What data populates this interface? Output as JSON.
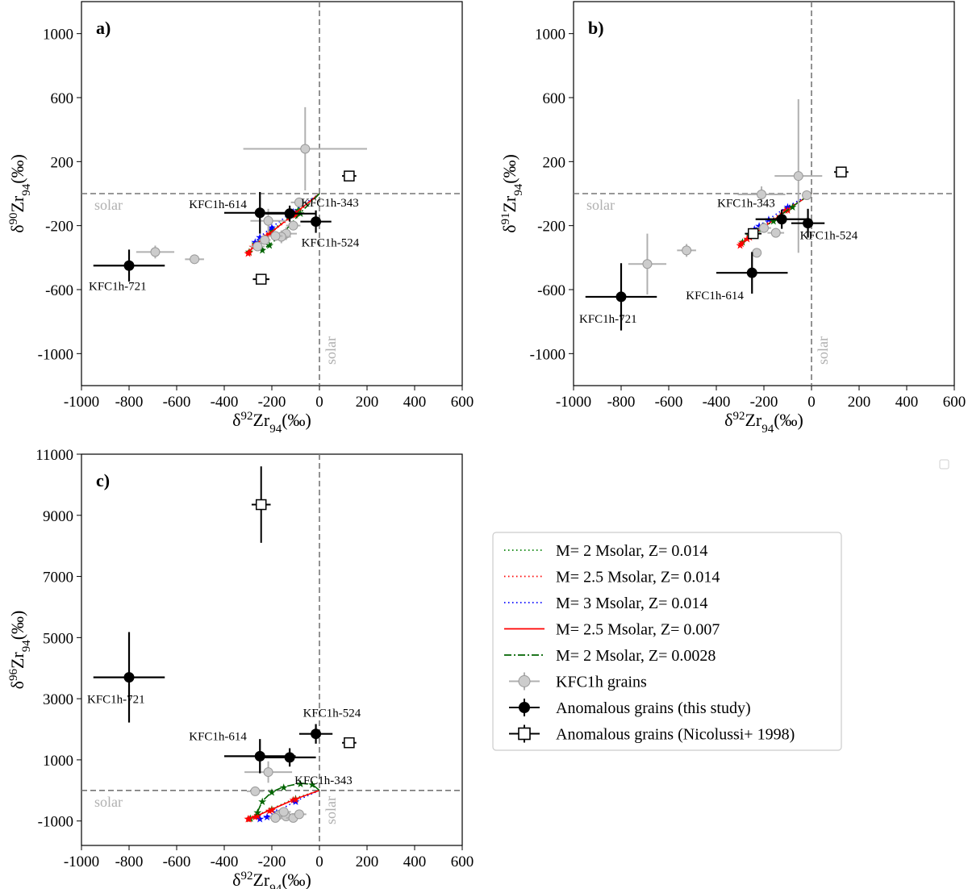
{
  "chart_data": [
    {
      "panel": "a)",
      "type": "scatter",
      "xlabel": {
        "base": "δ",
        "sup": "92",
        "main": "Zr",
        "sub": "94",
        "unit": "(‰)"
      },
      "ylabel": {
        "base": "δ",
        "sup": "90",
        "main": "Zr",
        "sub": "94",
        "unit": "(‰)"
      },
      "xlim": [
        -1000,
        600
      ],
      "ylim": [
        -1200,
        1200
      ],
      "xticks": [
        -1000,
        -800,
        -600,
        -400,
        -200,
        0,
        200,
        400,
        600
      ],
      "yticks": [
        -1000,
        -600,
        -200,
        200,
        600,
        1000
      ],
      "solar_labels": [
        "solar",
        "solar"
      ],
      "kfc1h_grains": [
        {
          "x": -60,
          "y": 280,
          "ex": 260,
          "ey": 260
        },
        {
          "x": -690,
          "y": -365,
          "ex": 80,
          "ey": 40
        },
        {
          "x": -525,
          "y": -410,
          "ex": 40,
          "ey": 25
        },
        {
          "x": -85,
          "y": -55,
          "ex": 35,
          "ey": 30
        },
        {
          "x": -215,
          "y": -170,
          "ex": 75,
          "ey": 75
        },
        {
          "x": -110,
          "y": -200,
          "ex": 30,
          "ey": 30
        },
        {
          "x": -140,
          "y": -250,
          "ex": 45,
          "ey": 40
        },
        {
          "x": -160,
          "y": -270,
          "ex": 40,
          "ey": 40
        },
        {
          "x": -185,
          "y": -265,
          "ex": 30,
          "ey": 30
        },
        {
          "x": -260,
          "y": -330,
          "ex": 30,
          "ey": 25
        },
        {
          "x": -230,
          "y": -290,
          "ex": 25,
          "ey": 25
        }
      ],
      "anomalous_this_study": [
        {
          "label": "KFC1h-721",
          "x": -800,
          "y": -450,
          "ex": 150,
          "ey": 100
        },
        {
          "label": "KFC1h-614",
          "x": -250,
          "y": -120,
          "ex": 150,
          "ey": 130
        },
        {
          "label": "KFC1h-343",
          "x": -125,
          "y": -125,
          "ex": 110,
          "ey": 50
        },
        {
          "label": "KFC1h-524",
          "x": -15,
          "y": -175,
          "ex": 65,
          "ey": 70
        }
      ],
      "anomalous_nicolussi": [
        {
          "x": 125,
          "y": 110,
          "ex": 30,
          "ey": 20
        },
        {
          "x": -245,
          "y": -535,
          "ex": 35,
          "ey": 20
        }
      ],
      "models": [
        {
          "x": [
            0,
            -90,
            -200,
            -270,
            -295
          ],
          "y": [
            0,
            -100,
            -230,
            -310,
            -360
          ]
        },
        {
          "x": [
            0,
            -100,
            -220,
            -280,
            -300
          ],
          "y": [
            0,
            -130,
            -260,
            -330,
            -370
          ]
        },
        {
          "x": [
            0,
            -110,
            -200,
            -250,
            -270
          ],
          "y": [
            0,
            -110,
            -210,
            -270,
            -300
          ]
        },
        {
          "x": [
            0,
            -100,
            -210,
            -270,
            -295
          ],
          "y": [
            0,
            -120,
            -250,
            -320,
            -365
          ]
        },
        {
          "x": [
            0,
            -80,
            -160,
            -210,
            -240
          ],
          "y": [
            0,
            -120,
            -260,
            -320,
            -350
          ]
        }
      ]
    },
    {
      "panel": "b)",
      "type": "scatter",
      "xlabel": {
        "base": "δ",
        "sup": "92",
        "main": "Zr",
        "sub": "94",
        "unit": "(‰)"
      },
      "ylabel": {
        "base": "δ",
        "sup": "91",
        "main": "Zr",
        "sub": "94",
        "unit": "(‰)"
      },
      "xlim": [
        -1000,
        600
      ],
      "ylim": [
        -1200,
        1200
      ],
      "xticks": [
        -1000,
        -800,
        -600,
        -400,
        -200,
        0,
        200,
        400,
        600
      ],
      "yticks": [
        -1000,
        -600,
        -200,
        200,
        600,
        1000
      ],
      "solar_labels": [
        "solar",
        "solar"
      ],
      "kfc1h_grains": [
        {
          "x": -55,
          "y": 110,
          "ex": 100,
          "ey": 480
        },
        {
          "x": -210,
          "y": -5,
          "ex": 100,
          "ey": 50
        },
        {
          "x": -690,
          "y": -440,
          "ex": 80,
          "ey": 190
        },
        {
          "x": -525,
          "y": -355,
          "ex": 40,
          "ey": 40
        },
        {
          "x": -230,
          "y": -370,
          "ex": 20,
          "ey": 20
        },
        {
          "x": -150,
          "y": -245,
          "ex": 35,
          "ey": 30
        },
        {
          "x": -200,
          "y": -215,
          "ex": 30,
          "ey": 30
        },
        {
          "x": -20,
          "y": -10,
          "ex": 20,
          "ey": 20
        }
      ],
      "anomalous_this_study": [
        {
          "label": "KFC1h-721",
          "x": -800,
          "y": -645,
          "ex": 150,
          "ey": 210
        },
        {
          "label": "KFC1h-614",
          "x": -250,
          "y": -495,
          "ex": 150,
          "ey": 130
        },
        {
          "label": "KFC1h-343",
          "x": -125,
          "y": -160,
          "ex": 110,
          "ey": 60
        },
        {
          "label": "KFC1h-524",
          "x": -15,
          "y": -185,
          "ex": 70,
          "ey": 90
        }
      ],
      "anomalous_nicolussi": [
        {
          "x": 125,
          "y": 135,
          "ex": 30,
          "ey": 30
        },
        {
          "x": -245,
          "y": -250,
          "ex": 35,
          "ey": 30
        }
      ],
      "models": [
        {
          "x": [
            0,
            -100,
            -200,
            -260,
            -290
          ],
          "y": [
            0,
            -90,
            -200,
            -260,
            -300
          ]
        },
        {
          "x": [
            0,
            -110,
            -210,
            -270,
            -300
          ],
          "y": [
            0,
            -100,
            -210,
            -280,
            -320
          ]
        },
        {
          "x": [
            0,
            -100,
            -180,
            -220,
            -240
          ],
          "y": [
            0,
            -80,
            -160,
            -200,
            -220
          ]
        },
        {
          "x": [
            0,
            -100,
            -200,
            -260,
            -295
          ],
          "y": [
            0,
            -100,
            -210,
            -270,
            -310
          ]
        },
        {
          "x": [
            0,
            -80,
            -160,
            -210,
            -240
          ],
          "y": [
            0,
            -80,
            -170,
            -220,
            -250
          ]
        }
      ]
    },
    {
      "panel": "c)",
      "type": "scatter",
      "xlabel": {
        "base": "δ",
        "sup": "92",
        "main": "Zr",
        "sub": "94",
        "unit": "(‰)"
      },
      "ylabel": {
        "base": "δ",
        "sup": "96",
        "main": "Zr",
        "sub": "94",
        "unit": "(‰)"
      },
      "xlim": [
        -1000,
        600
      ],
      "ylim": [
        -1800,
        11000
      ],
      "xticks": [
        -1000,
        -800,
        -600,
        -400,
        -200,
        0,
        200,
        400,
        600
      ],
      "yticks": [
        -1000,
        1000,
        3000,
        5000,
        7000,
        9000,
        11000
      ],
      "solar_labels": [
        "solar",
        "solar"
      ],
      "kfc1h_grains": [
        {
          "x": -215,
          "y": 600,
          "ex": 100,
          "ey": 350
        },
        {
          "x": -270,
          "y": -30,
          "ex": 35,
          "ey": 60
        },
        {
          "x": -170,
          "y": -800,
          "ex": 30,
          "ey": 60
        },
        {
          "x": -140,
          "y": -850,
          "ex": 30,
          "ey": 60
        },
        {
          "x": -110,
          "y": -900,
          "ex": 30,
          "ey": 60
        },
        {
          "x": -85,
          "y": -780,
          "ex": 30,
          "ey": 60
        },
        {
          "x": -150,
          "y": -700,
          "ex": 30,
          "ey": 60
        },
        {
          "x": -185,
          "y": -900,
          "ex": 30,
          "ey": 60
        }
      ],
      "anomalous_this_study": [
        {
          "label": "KFC1h-721",
          "x": -800,
          "y": 3700,
          "ex": 150,
          "ey": 1480
        },
        {
          "label": "KFC1h-614",
          "x": -250,
          "y": 1120,
          "ex": 150,
          "ey": 560
        },
        {
          "label": "KFC1h-343",
          "x": -125,
          "y": 1080,
          "ex": 110,
          "ey": 300
        },
        {
          "label": "KFC1h-524",
          "x": -15,
          "y": 1850,
          "ex": 70,
          "ey": 320
        }
      ],
      "anomalous_nicolussi": [
        {
          "x": 125,
          "y": 1560,
          "ex": 30,
          "ey": 150
        },
        {
          "x": -245,
          "y": 9350,
          "ex": 40,
          "ey": 1250
        }
      ],
      "models": [
        {
          "x": [
            0,
            -100,
            -200,
            -260,
            -290
          ],
          "y": [
            0,
            -250,
            -600,
            -800,
            -900
          ]
        },
        {
          "x": [
            0,
            -110,
            -210,
            -270,
            -300
          ],
          "y": [
            0,
            -300,
            -650,
            -850,
            -920
          ]
        },
        {
          "x": [
            0,
            -100,
            -180,
            -220,
            -250
          ],
          "y": [
            0,
            -350,
            -700,
            -850,
            -920
          ]
        },
        {
          "x": [
            0,
            -100,
            -200,
            -260,
            -295
          ],
          "y": [
            0,
            -280,
            -620,
            -820,
            -910
          ]
        },
        {
          "x": [
            0,
            -30,
            -80,
            -150,
            -200,
            -240,
            -260
          ],
          "y": [
            0,
            200,
            230,
            120,
            -50,
            -350,
            -700
          ]
        }
      ]
    }
  ],
  "legend": {
    "items": [
      {
        "label": "M= 2 Msolar, Z= 0.014",
        "color": "#008000",
        "dash": "dotted"
      },
      {
        "label": "M= 2.5 Msolar, Z= 0.014",
        "color": "#ff0000",
        "dash": "dotted"
      },
      {
        "label": "M= 3 Msolar, Z= 0.014",
        "color": "#0000ff",
        "dash": "dotted"
      },
      {
        "label": "M= 2.5 Msolar, Z= 0.007",
        "color": "#ff0000",
        "dash": "solid"
      },
      {
        "label": "M= 2 Msolar, Z= 0.0028",
        "color": "#006400",
        "dash": "dashdot"
      },
      {
        "label": "KFC1h grains",
        "color": "#b0b0b0",
        "dash": "marker-gray"
      },
      {
        "label": "Anomalous grains (this study)",
        "color": "#000000",
        "dash": "marker-black"
      },
      {
        "label": "Anomalous grains (Nicolussi+ 1998)",
        "color": "#000000",
        "dash": "marker-square"
      }
    ]
  }
}
